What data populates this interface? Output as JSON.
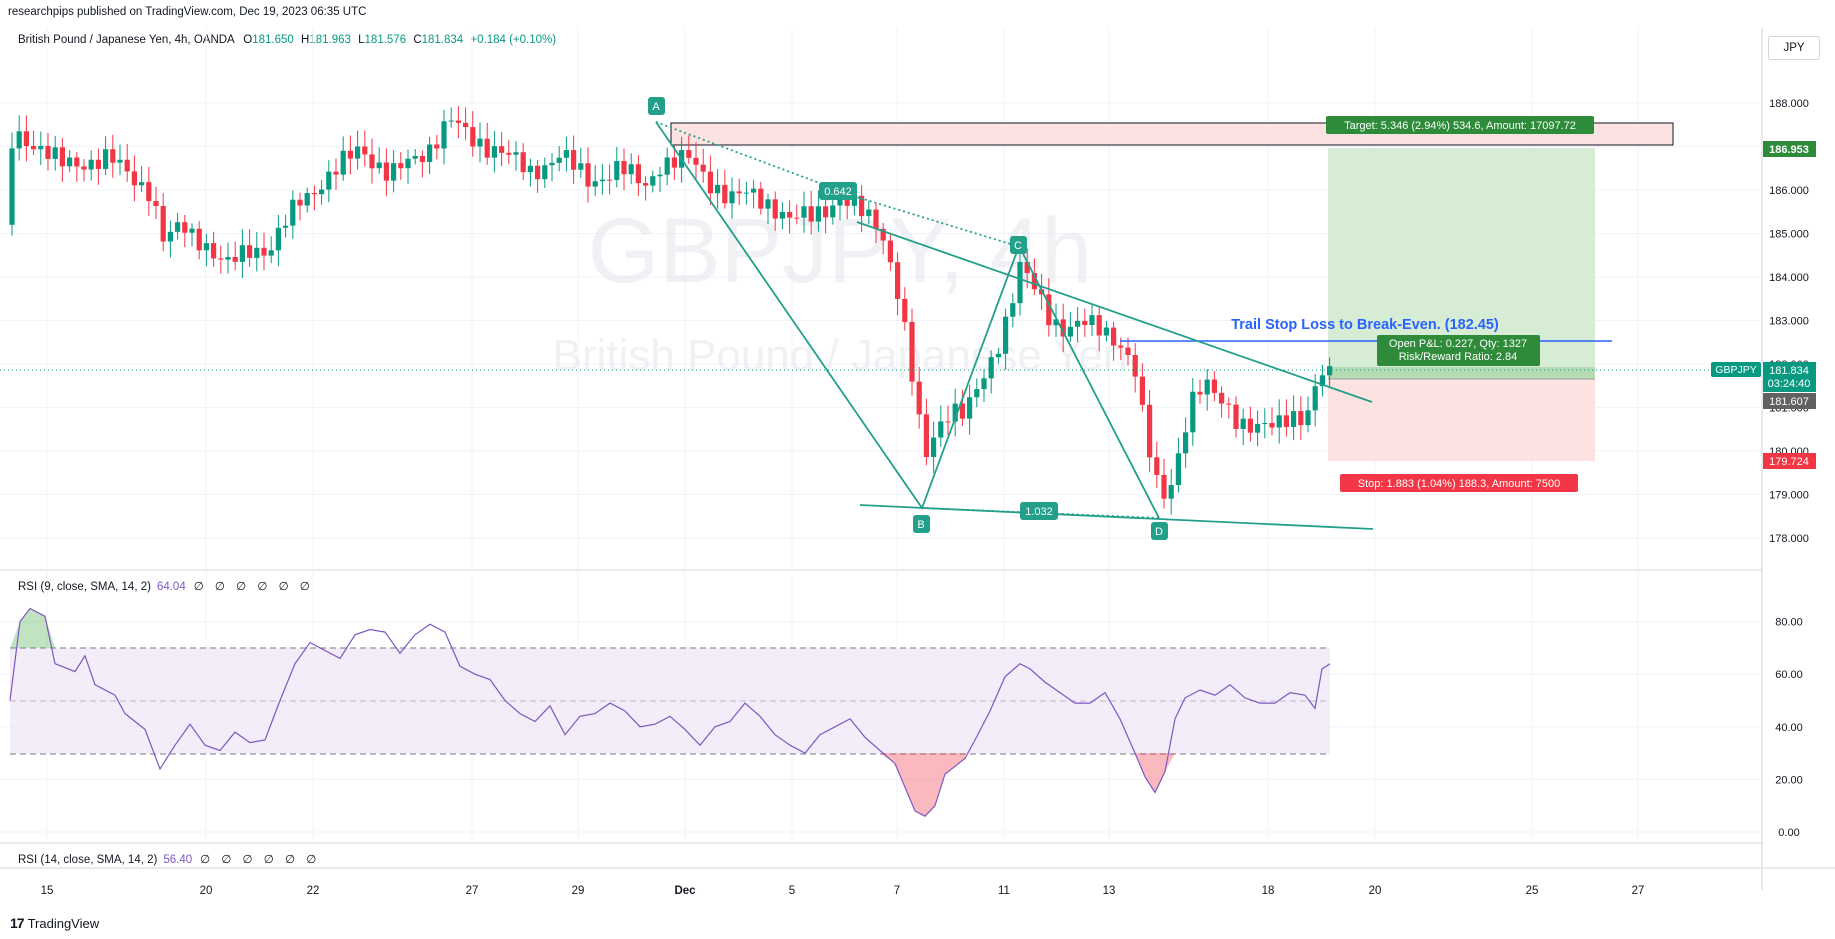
{
  "header": {
    "published": "researchpips published on TradingView.com, Dec 19, 2023 06:35 UTC",
    "symbol_desc": "British Pound / Japanese Yen, 4h, OANDA",
    "open_label": "O",
    "open": "181.650",
    "high_label": "H",
    "high": "181.963",
    "low_label": "L",
    "low": "181.576",
    "close_label": "C",
    "close": "181.834",
    "change": "+0.184 (+0.10%)",
    "currency": "JPY"
  },
  "watermark": {
    "ticker": "GBPJPY, 4h",
    "name": "British Pound / Japanese Yen"
  },
  "price_axis": {
    "ticks": [
      "188.000",
      "187.000",
      "186.000",
      "185.000",
      "184.000",
      "183.000",
      "182.000",
      "181.000",
      "180.000",
      "179.000",
      "178.000"
    ],
    "badges": {
      "target": "186.953",
      "symbol_tag": "GBPJPY",
      "last_price": "181.834",
      "countdown": "03:24:40",
      "entry": "181.607",
      "stop": "179.724"
    }
  },
  "rsi_axis": {
    "ticks": [
      "80.00",
      "60.00",
      "40.00",
      "20.00",
      "0.00"
    ]
  },
  "time_axis": {
    "ticks": [
      "15",
      "20",
      "22",
      "27",
      "29",
      "Dec",
      "5",
      "7",
      "11",
      "13",
      "18",
      "20",
      "25",
      "27"
    ]
  },
  "pattern": {
    "points": [
      "A",
      "B",
      "C",
      "D"
    ],
    "ratio_ac": "0.642",
    "ratio_bd": "1.032"
  },
  "position": {
    "target_label": "Target: 5.346 (2.94%) 534.6, Amount: 17097.72",
    "pnl_label": "Open P&L: 0.227, Qty: 1327",
    "rr_label": "Risk/Reward Ratio: 2.84",
    "stop_label": "Stop: 1.883 (1.04%) 188.3, Amount: 7500",
    "note": "Trail Stop Loss to Break-Even. (182.45)"
  },
  "indicators": {
    "rsi1": {
      "label": "RSI (9, close, SMA, 14, 2)",
      "value": "64.04",
      "extras": "∅ ∅ ∅ ∅ ∅ ∅"
    },
    "rsi2": {
      "label": "RSI (14, close, SMA, 14, 2)",
      "value": "56.40",
      "extras": "∅ ∅ ∅ ∅ ∅ ∅"
    }
  },
  "footer": {
    "brand": "TradingView",
    "logo": "17"
  },
  "colors": {
    "up": "#089981",
    "down": "#f23645",
    "pattern": "#22a08a",
    "rsi": "#7e57c2",
    "note": "#2962ff",
    "target": "#2e8b3a",
    "stop": "#f23645"
  }
}
